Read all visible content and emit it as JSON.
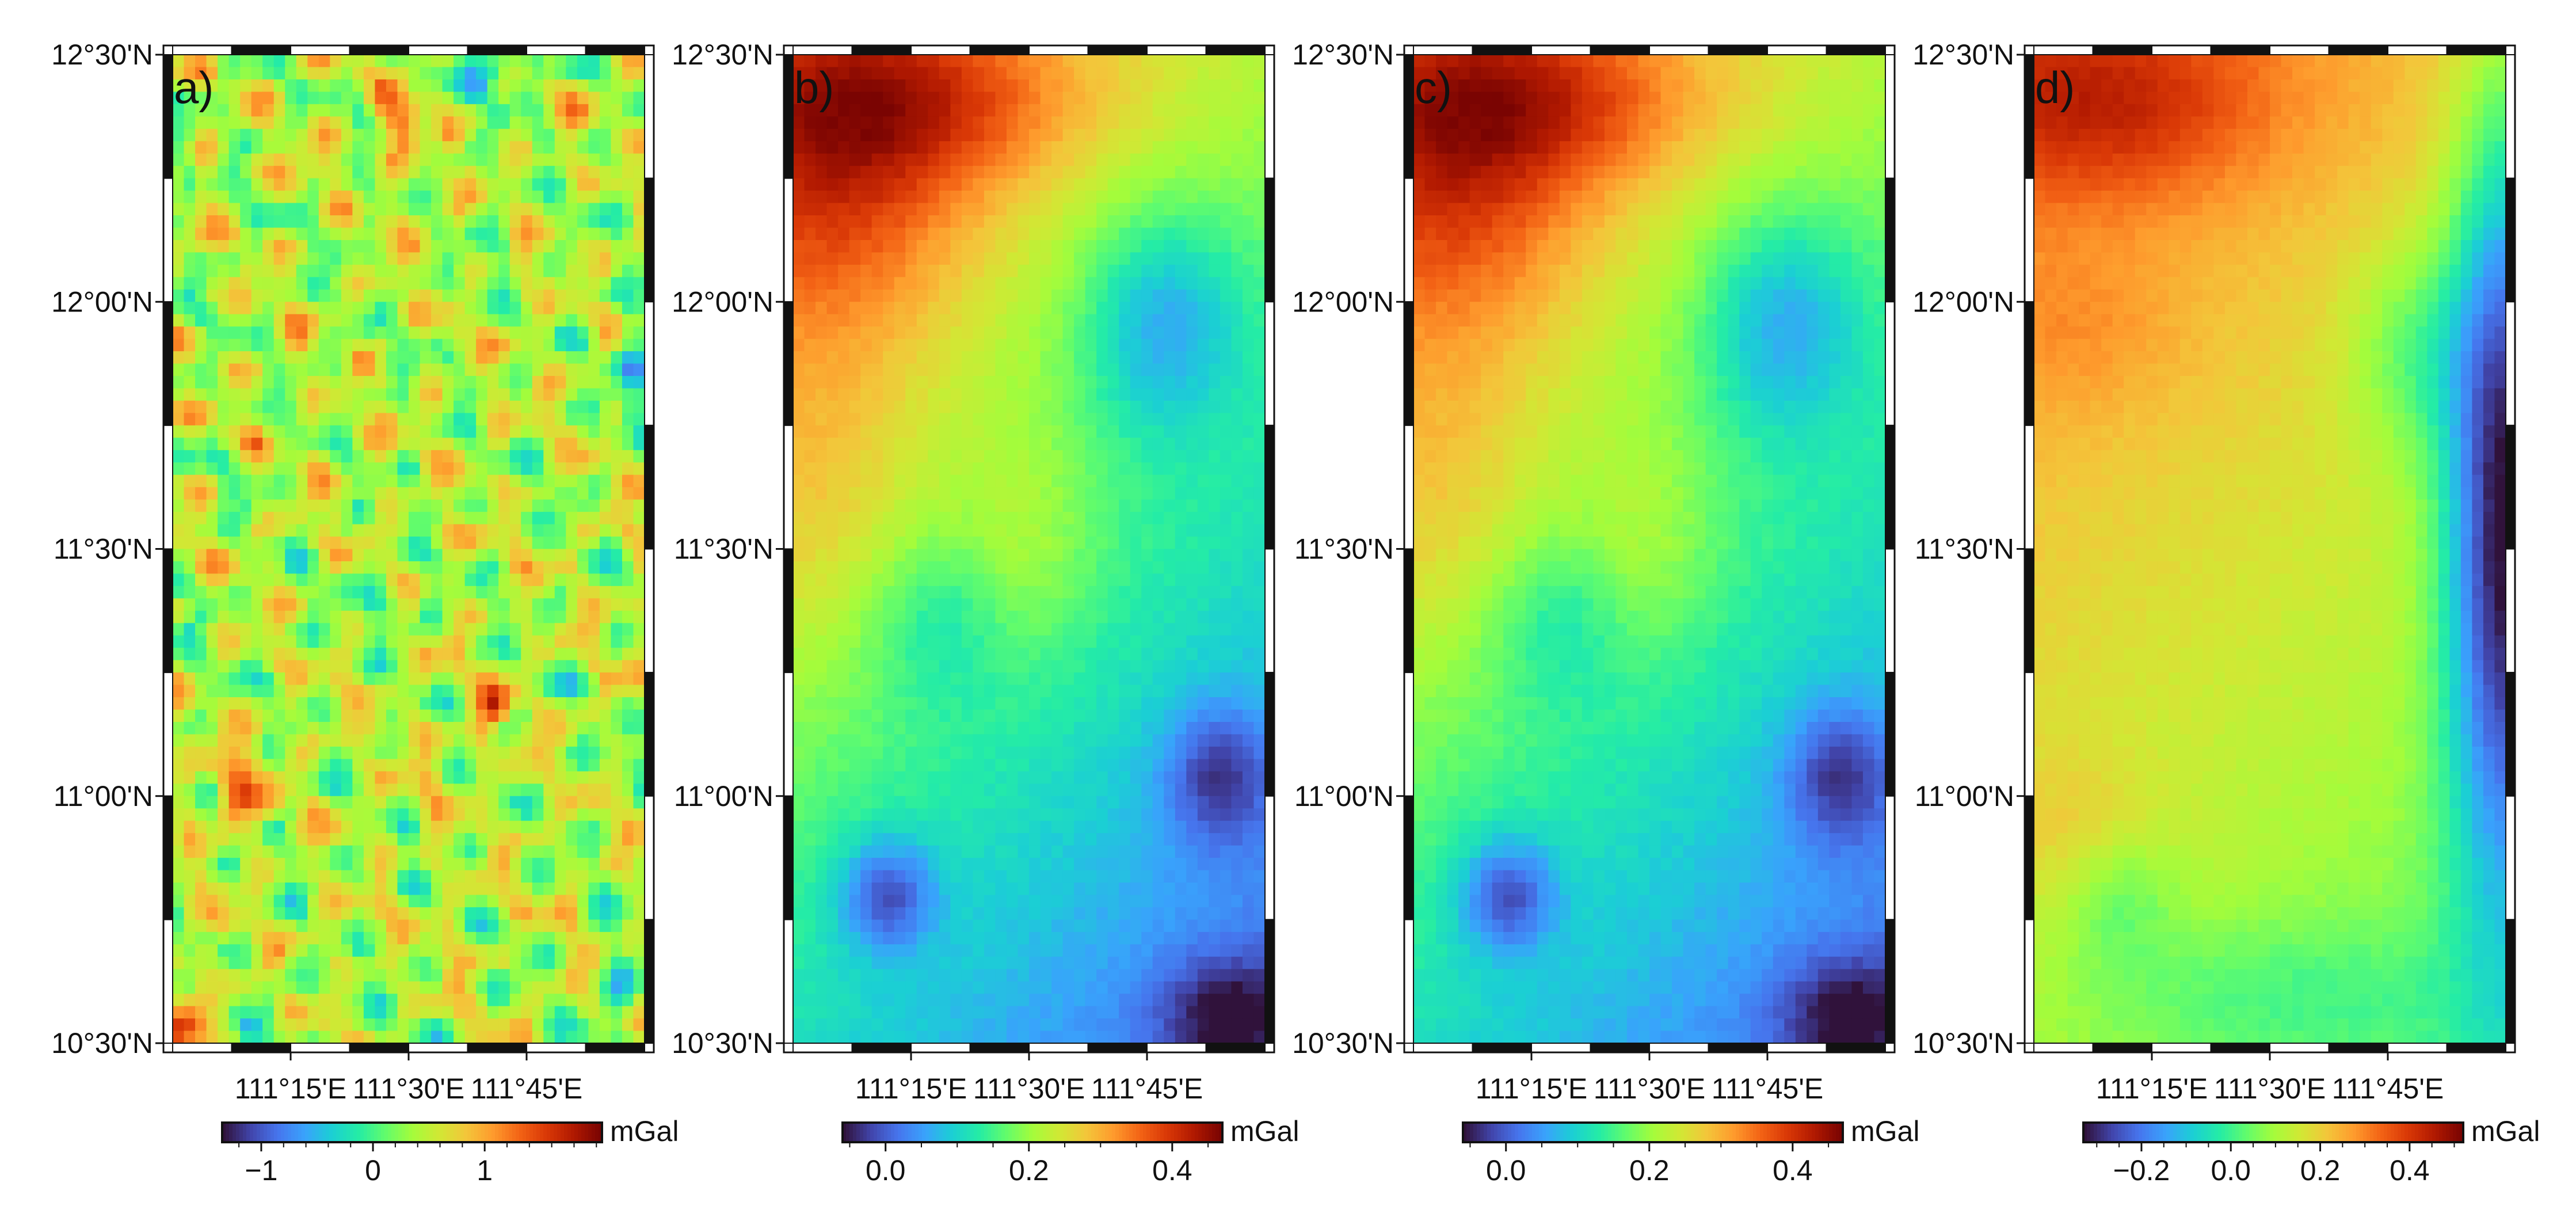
{
  "panels": [
    {
      "label": "a)",
      "lat_ticks": [
        "12°30'N",
        "12°00'N",
        "11°30'N",
        "11°00'N",
        "10°30'N"
      ],
      "lon_ticks": [
        "111°15'E",
        "111°30'E",
        "111°45'E"
      ],
      "colorbar": {
        "unit": "mGal",
        "ticks": [
          "−1",
          "0",
          "1"
        ],
        "range": [
          -1.35,
          2.05
        ],
        "tick_values": [
          -1,
          0,
          1
        ]
      },
      "pattern": "noise",
      "value_range": [
        -1.35,
        2.05
      ]
    },
    {
      "label": "b)",
      "lat_ticks": [
        "12°30'N",
        "12°00'N",
        "11°30'N",
        "11°00'N",
        "10°30'N"
      ],
      "lon_ticks": [
        "111°15'E",
        "111°30'E",
        "111°45'E"
      ],
      "colorbar": {
        "unit": "mGal",
        "ticks": [
          "0.0",
          "0.2",
          "0.4"
        ],
        "range": [
          -0.06,
          0.47
        ],
        "tick_values": [
          0.0,
          0.2,
          0.4
        ]
      },
      "pattern": "smooth",
      "value_range": [
        -0.06,
        0.47
      ]
    },
    {
      "label": "c)",
      "lat_ticks": [
        "12°30'N",
        "12°00'N",
        "11°30'N",
        "11°00'N",
        "10°30'N"
      ],
      "lon_ticks": [
        "111°15'E",
        "111°30'E",
        "111°45'E"
      ],
      "colorbar": {
        "unit": "mGal",
        "ticks": [
          "0.0",
          "0.2",
          "0.4"
        ],
        "range": [
          -0.06,
          0.47
        ],
        "tick_values": [
          0.0,
          0.2,
          0.4
        ]
      },
      "pattern": "smooth",
      "value_range": [
        -0.06,
        0.47
      ]
    },
    {
      "label": "d)",
      "lat_ticks": [
        "12°30'N",
        "12°00'N",
        "11°30'N",
        "11°00'N",
        "10°30'N"
      ],
      "lon_ticks": [
        "111°15'E",
        "111°30'E",
        "111°45'E"
      ],
      "colorbar": {
        "unit": "mGal",
        "ticks": [
          "−0.2",
          "0.0",
          "0.2",
          "0.4"
        ],
        "range": [
          -0.33,
          0.52
        ],
        "tick_values": [
          -0.2,
          0.0,
          0.2,
          0.4
        ]
      },
      "pattern": "smooth_east_low",
      "value_range": [
        -0.33,
        0.52
      ]
    }
  ],
  "colormap": [
    "#30123b",
    "#4145ab",
    "#4675ed",
    "#39a2fc",
    "#1bcfd4",
    "#24eca6",
    "#61fc6c",
    "#a4fc3b",
    "#d1e834",
    "#f3c63a",
    "#fe9b2d",
    "#f36315",
    "#d93806",
    "#b11901",
    "#7a0402"
  ]
}
